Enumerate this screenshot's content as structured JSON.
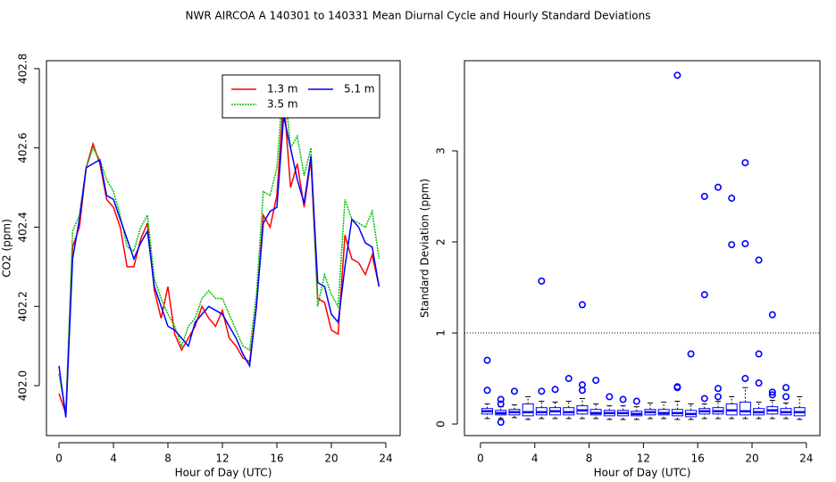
{
  "title": "NWR   AIRCOA A   140301 to 140331   Mean Diurnal Cycle and Hourly Standard Deviations",
  "chart_data": [
    {
      "type": "line",
      "xlabel": "Hour of Day (UTC)",
      "ylabel": "CO2 (ppm)",
      "x": [
        0,
        0.5,
        1,
        1.5,
        2,
        2.5,
        3,
        3.5,
        4,
        4.5,
        5,
        5.5,
        6,
        6.5,
        7,
        7.5,
        8,
        8.5,
        9,
        9.5,
        10,
        10.5,
        11,
        11.5,
        12,
        12.5,
        13,
        13.5,
        14,
        14.5,
        15,
        15.5,
        16,
        16.5,
        17,
        17.5,
        18,
        18.5,
        19,
        19.5,
        20,
        20.5,
        21,
        21.5,
        22,
        22.5,
        23,
        23.5
      ],
      "series": [
        {
          "name": "1.3 m",
          "color": "#ff0000",
          "dash": "none",
          "values": [
            401.98,
            401.93,
            402.35,
            402.4,
            402.55,
            402.61,
            402.56,
            402.47,
            402.45,
            402.4,
            402.3,
            402.3,
            402.37,
            402.41,
            402.24,
            402.17,
            402.25,
            402.13,
            402.09,
            402.12,
            402.15,
            402.2,
            402.17,
            402.15,
            402.19,
            402.12,
            402.1,
            402.07,
            402.06,
            402.2,
            402.43,
            402.4,
            402.48,
            402.73,
            402.5,
            402.56,
            402.45,
            402.57,
            402.22,
            402.21,
            402.14,
            402.13,
            402.38,
            402.32,
            402.31,
            402.28,
            402.33,
            402.25
          ]
        },
        {
          "name": "3.5 m",
          "color": "#00c000",
          "dash": "2,1",
          "values": [
            402.03,
            401.93,
            402.39,
            402.43,
            402.55,
            402.6,
            402.57,
            402.52,
            402.49,
            402.43,
            402.35,
            402.34,
            402.4,
            402.43,
            402.27,
            402.22,
            402.18,
            402.15,
            402.1,
            402.15,
            402.17,
            402.22,
            402.24,
            402.22,
            402.22,
            402.18,
            402.14,
            402.1,
            402.09,
            402.23,
            402.49,
            402.48,
            402.55,
            402.78,
            402.6,
            402.63,
            402.53,
            402.6,
            402.2,
            402.28,
            402.23,
            402.2,
            402.47,
            402.42,
            402.41,
            402.4,
            402.44,
            402.32
          ]
        },
        {
          "name": "5.1 m",
          "color": "#0000ff",
          "dash": "none",
          "values": [
            402.05,
            401.92,
            402.32,
            402.42,
            402.55,
            402.56,
            402.57,
            402.48,
            402.47,
            402.42,
            402.37,
            402.32,
            402.36,
            402.39,
            402.25,
            402.2,
            402.15,
            402.14,
            402.12,
            402.1,
            402.16,
            402.18,
            402.2,
            402.19,
            402.18,
            402.15,
            402.12,
            402.08,
            402.05,
            402.2,
            402.41,
            402.44,
            402.45,
            402.68,
            402.6,
            402.52,
            402.46,
            402.58,
            402.26,
            402.25,
            402.18,
            402.16,
            402.3,
            402.42,
            402.4,
            402.36,
            402.35,
            402.25
          ]
        }
      ],
      "xlim": [
        -0.92,
        25.05
      ],
      "ylim": [
        401.874,
        402.82
      ],
      "xticks": [
        0,
        4,
        8,
        12,
        16,
        20,
        24
      ],
      "yticks": [
        {
          "value": 402,
          "label": "402.0"
        },
        402.2,
        402.4,
        402.6,
        402.8
      ],
      "legend": "top-right"
    },
    {
      "type": "box",
      "xlabel": "Hour of Day (UTC)",
      "ylabel": "Standard Deviation (ppm)",
      "color": "#0000ff",
      "hline": 1,
      "boxes": [
        {
          "x": 0.5,
          "low": 0.06,
          "q1": 0.11,
          "median": 0.14,
          "q3": 0.17,
          "high": 0.22,
          "outliers": [
            0.7,
            0.37
          ]
        },
        {
          "x": 1.5,
          "low": 0.06,
          "q1": 0.1,
          "median": 0.12,
          "q3": 0.15,
          "high": 0.19,
          "outliers": [
            0.27,
            0.22,
            0.02
          ]
        },
        {
          "x": 2.5,
          "low": 0.07,
          "q1": 0.1,
          "median": 0.13,
          "q3": 0.16,
          "high": 0.21,
          "outliers": [
            0.36
          ]
        },
        {
          "x": 3.5,
          "low": 0.05,
          "q1": 0.09,
          "median": 0.13,
          "q3": 0.22,
          "high": 0.3,
          "outliers": []
        },
        {
          "x": 4.5,
          "low": 0.06,
          "q1": 0.1,
          "median": 0.13,
          "q3": 0.18,
          "high": 0.25,
          "outliers": [
            1.57,
            0.36
          ]
        },
        {
          "x": 5.5,
          "low": 0.06,
          "q1": 0.1,
          "median": 0.14,
          "q3": 0.18,
          "high": 0.24,
          "outliers": [
            0.38
          ]
        },
        {
          "x": 6.5,
          "low": 0.06,
          "q1": 0.1,
          "median": 0.13,
          "q3": 0.18,
          "high": 0.25,
          "outliers": [
            0.5
          ]
        },
        {
          "x": 7.5,
          "low": 0.06,
          "q1": 0.11,
          "median": 0.15,
          "q3": 0.2,
          "high": 0.28,
          "outliers": [
            1.31,
            0.43,
            0.37
          ]
        },
        {
          "x": 8.5,
          "low": 0.06,
          "q1": 0.1,
          "median": 0.12,
          "q3": 0.16,
          "high": 0.22,
          "outliers": [
            0.48
          ]
        },
        {
          "x": 9.5,
          "low": 0.05,
          "q1": 0.09,
          "median": 0.12,
          "q3": 0.15,
          "high": 0.2,
          "outliers": [
            0.3
          ]
        },
        {
          "x": 10.5,
          "low": 0.05,
          "q1": 0.09,
          "median": 0.12,
          "q3": 0.15,
          "high": 0.2,
          "outliers": [
            0.27
          ]
        },
        {
          "x": 11.5,
          "low": 0.05,
          "q1": 0.09,
          "median": 0.11,
          "q3": 0.14,
          "high": 0.19,
          "outliers": [
            0.25
          ]
        },
        {
          "x": 12.5,
          "low": 0.06,
          "q1": 0.1,
          "median": 0.13,
          "q3": 0.16,
          "high": 0.23,
          "outliers": []
        },
        {
          "x": 13.5,
          "low": 0.06,
          "q1": 0.1,
          "median": 0.12,
          "q3": 0.16,
          "high": 0.24,
          "outliers": []
        },
        {
          "x": 14.5,
          "low": 0.05,
          "q1": 0.09,
          "median": 0.12,
          "q3": 0.16,
          "high": 0.25,
          "outliers": [
            3.83,
            0.41,
            0.4
          ]
        },
        {
          "x": 15.5,
          "low": 0.05,
          "q1": 0.08,
          "median": 0.11,
          "q3": 0.15,
          "high": 0.22,
          "outliers": [
            0.77
          ]
        },
        {
          "x": 16.5,
          "low": 0.06,
          "q1": 0.11,
          "median": 0.14,
          "q3": 0.17,
          "high": 0.22,
          "outliers": [
            2.5,
            1.42,
            0.28
          ]
        },
        {
          "x": 17.5,
          "low": 0.06,
          "q1": 0.11,
          "median": 0.14,
          "q3": 0.18,
          "high": 0.25,
          "outliers": [
            2.6,
            0.39,
            0.3
          ]
        },
        {
          "x": 18.5,
          "low": 0.06,
          "q1": 0.1,
          "median": 0.15,
          "q3": 0.22,
          "high": 0.3,
          "outliers": [
            2.48,
            1.97
          ]
        },
        {
          "x": 19.5,
          "low": 0.06,
          "q1": 0.1,
          "median": 0.14,
          "q3": 0.24,
          "high": 0.4,
          "outliers": [
            2.87,
            1.98,
            0.5
          ]
        },
        {
          "x": 20.5,
          "low": 0.06,
          "q1": 0.1,
          "median": 0.13,
          "q3": 0.17,
          "high": 0.24,
          "outliers": [
            1.8,
            0.77,
            0.45
          ]
        },
        {
          "x": 21.5,
          "low": 0.06,
          "q1": 0.11,
          "median": 0.15,
          "q3": 0.19,
          "high": 0.26,
          "outliers": [
            1.2,
            0.35,
            0.32
          ]
        },
        {
          "x": 22.5,
          "low": 0.06,
          "q1": 0.1,
          "median": 0.13,
          "q3": 0.17,
          "high": 0.23,
          "outliers": [
            0.4,
            0.3
          ]
        },
        {
          "x": 23.5,
          "low": 0.05,
          "q1": 0.09,
          "median": 0.13,
          "q3": 0.18,
          "high": 0.3,
          "outliers": []
        }
      ],
      "xlim": [
        -1.18,
        25.0
      ],
      "ylim": [
        -0.127,
        3.99
      ],
      "xticks": [
        0,
        4,
        8,
        12,
        16,
        20,
        24
      ],
      "yticks": [
        0,
        1,
        2,
        3
      ]
    }
  ]
}
